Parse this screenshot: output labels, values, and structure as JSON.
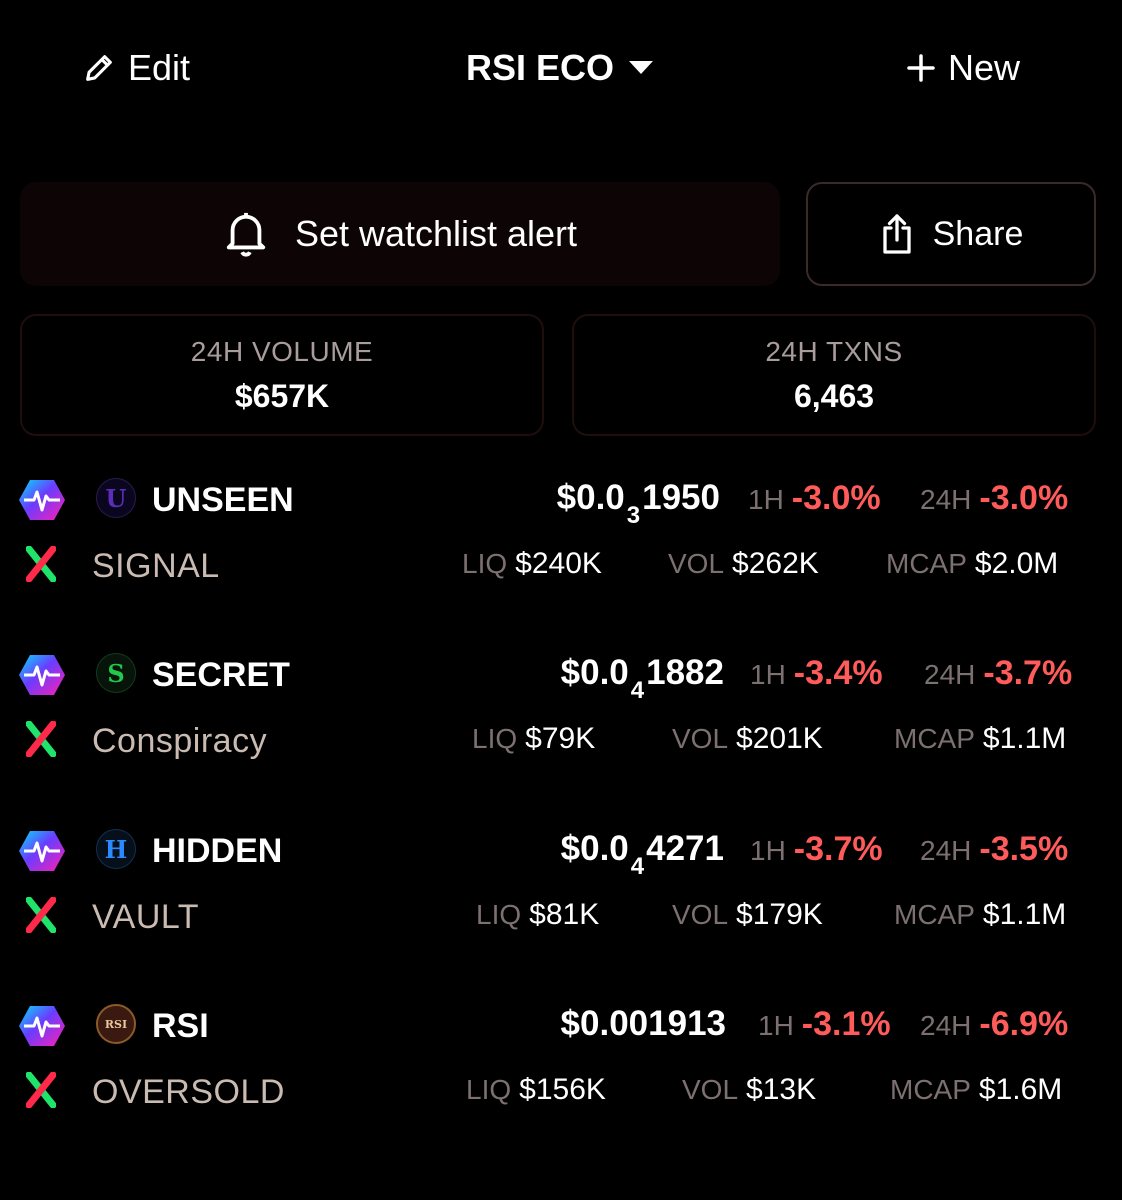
{
  "header": {
    "edit_label": "Edit",
    "title": "RSI ECO",
    "new_label": "New"
  },
  "actions": {
    "alert_label": "Set watchlist alert",
    "share_label": "Share"
  },
  "stats": {
    "volume_label": "24H VOLUME",
    "volume_value": "$657K",
    "txns_label": "24H TXNS",
    "txns_value": "6,463"
  },
  "labels": {
    "h1": "1H",
    "h24": "24H",
    "liq": "LIQ",
    "vol": "VOL",
    "mcap": "MCAP"
  },
  "tokens": [
    {
      "symbol": "UNSEEN",
      "name": "SIGNAL",
      "icon_letter": "U",
      "price_prefix": "$0.0",
      "price_sub": "3",
      "price_suffix": "1950",
      "change_1h": "-3.0%",
      "change_24h": "-3.0%",
      "liq": "$240K",
      "vol": "$262K",
      "mcap": "$2.0M"
    },
    {
      "symbol": "SECRET",
      "name": "Conspiracy",
      "icon_letter": "S",
      "price_prefix": "$0.0",
      "price_sub": "4",
      "price_suffix": "1882",
      "change_1h": "-3.4%",
      "change_24h": "-3.7%",
      "liq": "$79K",
      "vol": "$201K",
      "mcap": "$1.1M"
    },
    {
      "symbol": "HIDDEN",
      "name": "VAULT",
      "icon_letter": "H",
      "price_prefix": "$0.0",
      "price_sub": "4",
      "price_suffix": "4271",
      "change_1h": "-3.7%",
      "change_24h": "-3.5%",
      "liq": "$81K",
      "vol": "$179K",
      "mcap": "$1.1M"
    },
    {
      "symbol": "RSI",
      "name": "OVERSOLD",
      "icon_letter": "RSI",
      "price_prefix": "$0.001913",
      "price_sub": "",
      "price_suffix": "",
      "change_1h": "-3.1%",
      "change_24h": "-6.9%",
      "liq": "$156K",
      "vol": "$13K",
      "mcap": "$1.6M"
    }
  ],
  "icons": {
    "edit": "pencil-icon",
    "dropdown": "caret-down-icon",
    "new": "plus-icon",
    "alert": "bell-icon",
    "share": "share-icon",
    "chain": "pulsechain-icon",
    "dex": "pulsex-icon"
  },
  "colors": {
    "negative": "#ff5b5b",
    "muted": "#7c7070",
    "name": "#c9bbb2"
  }
}
